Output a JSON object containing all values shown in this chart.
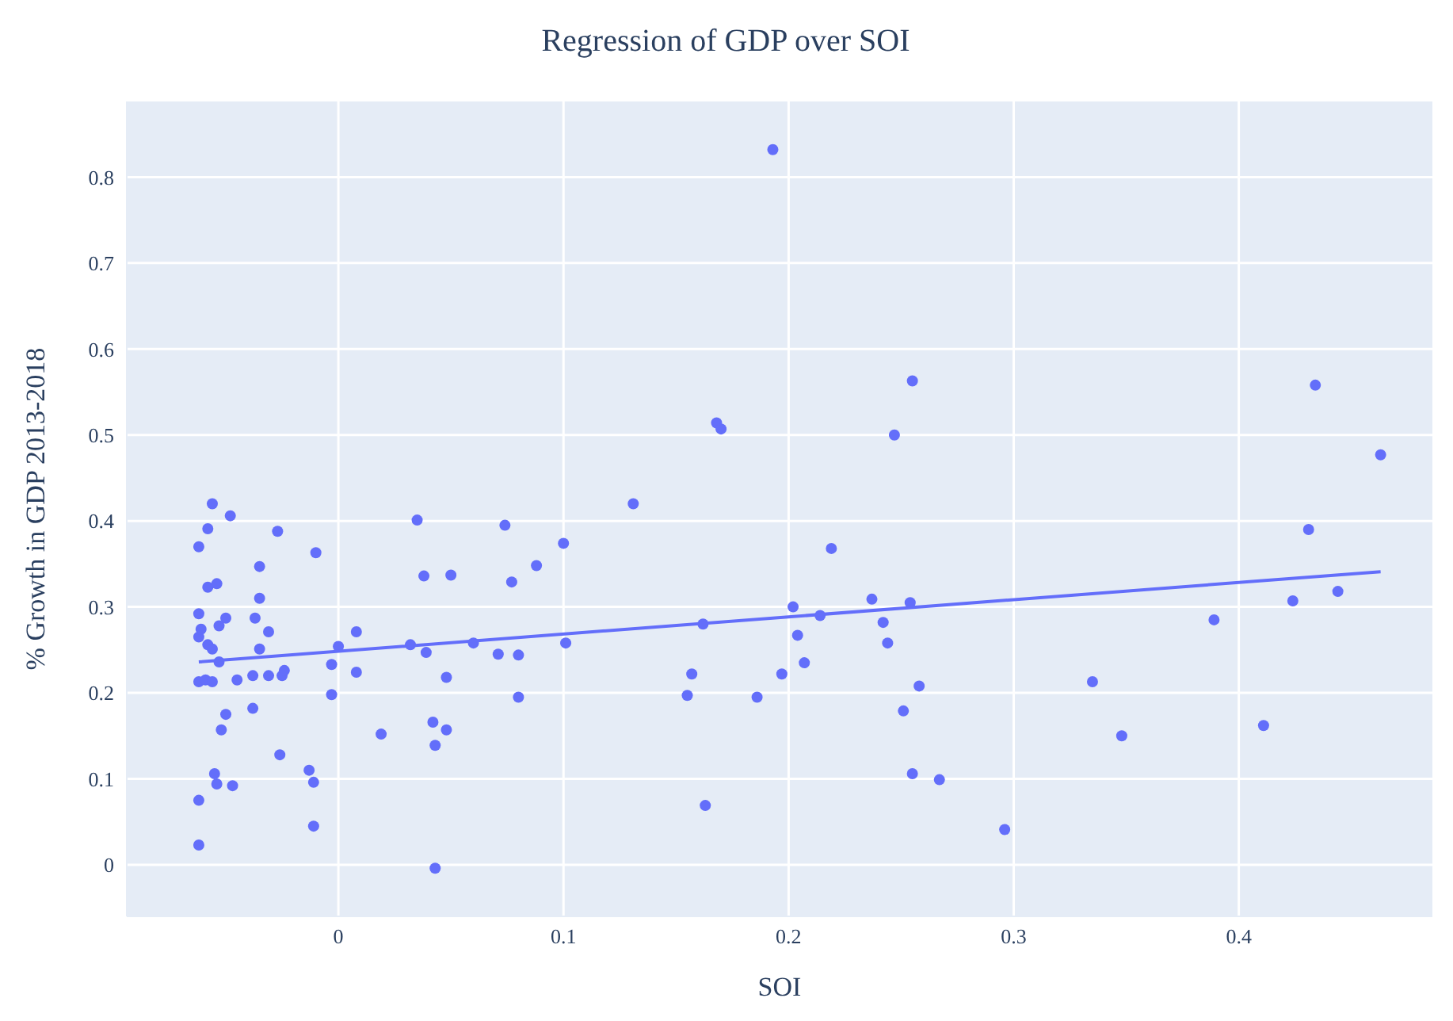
{
  "chart_data": {
    "type": "scatter",
    "title": "Regression of GDP over SOI",
    "xlabel": "SOI",
    "ylabel": "% Growth in GDP 2013-2018",
    "xlim": [
      -0.094,
      0.486
    ],
    "xticks": [
      0,
      0.1,
      0.2,
      0.3,
      0.4
    ],
    "ylim": [
      -0.06,
      0.888
    ],
    "yticks": [
      0,
      0.1,
      0.2,
      0.3,
      0.4,
      0.5,
      0.6,
      0.7,
      0.8
    ],
    "grid": true,
    "marker": "circle",
    "series": [
      {
        "color": "#636efa",
        "x": [
          -0.062,
          -0.062,
          -0.062,
          -0.058,
          -0.056,
          -0.048,
          -0.058,
          -0.054,
          -0.062,
          -0.062,
          -0.061,
          -0.058,
          -0.056,
          -0.05,
          -0.053,
          -0.053,
          -0.062,
          -0.059,
          -0.056,
          -0.045,
          -0.05,
          -0.052,
          -0.055,
          -0.054,
          -0.047,
          -0.035,
          -0.035,
          -0.037,
          -0.031,
          -0.035,
          -0.027,
          -0.01,
          -0.038,
          -0.031,
          -0.025,
          -0.024,
          -0.038,
          -0.026,
          -0.013,
          -0.011,
          -0.011,
          -0.003,
          -0.003,
          0.0,
          0.008,
          0.008,
          0.019,
          0.035,
          0.038,
          0.05,
          0.074,
          0.077,
          0.088,
          0.1,
          0.131,
          0.032,
          0.039,
          0.06,
          0.071,
          0.08,
          0.101,
          0.048,
          0.08,
          0.042,
          0.048,
          0.043,
          0.043,
          0.193,
          0.255,
          0.168,
          0.17,
          0.247,
          0.219,
          0.162,
          0.202,
          0.214,
          0.237,
          0.254,
          0.204,
          0.242,
          0.244,
          0.207,
          0.157,
          0.155,
          0.197,
          0.186,
          0.258,
          0.251,
          0.255,
          0.267,
          0.163,
          0.296,
          0.434,
          0.463,
          0.431,
          0.444,
          0.424,
          0.389,
          0.335,
          0.348,
          0.411
        ],
        "values": [
          0.37,
          0.075,
          0.023,
          0.391,
          0.42,
          0.406,
          0.323,
          0.327,
          0.292,
          0.265,
          0.274,
          0.256,
          0.251,
          0.287,
          0.278,
          0.236,
          0.213,
          0.215,
          0.213,
          0.215,
          0.175,
          0.157,
          0.106,
          0.094,
          0.092,
          0.347,
          0.31,
          0.287,
          0.271,
          0.251,
          0.388,
          0.363,
          0.22,
          0.22,
          0.22,
          0.226,
          0.182,
          0.128,
          0.11,
          0.096,
          0.045,
          0.233,
          0.198,
          0.254,
          0.271,
          0.224,
          0.152,
          0.401,
          0.336,
          0.337,
          0.395,
          0.329,
          0.348,
          0.374,
          0.42,
          0.256,
          0.247,
          0.258,
          0.245,
          0.244,
          0.258,
          0.218,
          0.195,
          0.166,
          0.157,
          0.139,
          -0.004,
          0.832,
          0.563,
          0.514,
          0.507,
          0.5,
          0.368,
          0.28,
          0.3,
          0.29,
          0.309,
          0.305,
          0.267,
          0.282,
          0.258,
          0.235,
          0.222,
          0.197,
          0.222,
          0.195,
          0.208,
          0.179,
          0.106,
          0.099,
          0.069,
          0.041,
          0.558,
          0.477,
          0.39,
          0.318,
          0.307,
          0.285,
          0.213,
          0.15,
          0.162
        ]
      },
      {
        "type": "line",
        "marker": "none",
        "color": "#636efa",
        "x": [
          -0.062,
          0.463
        ],
        "values": [
          0.236,
          0.341
        ]
      }
    ]
  }
}
